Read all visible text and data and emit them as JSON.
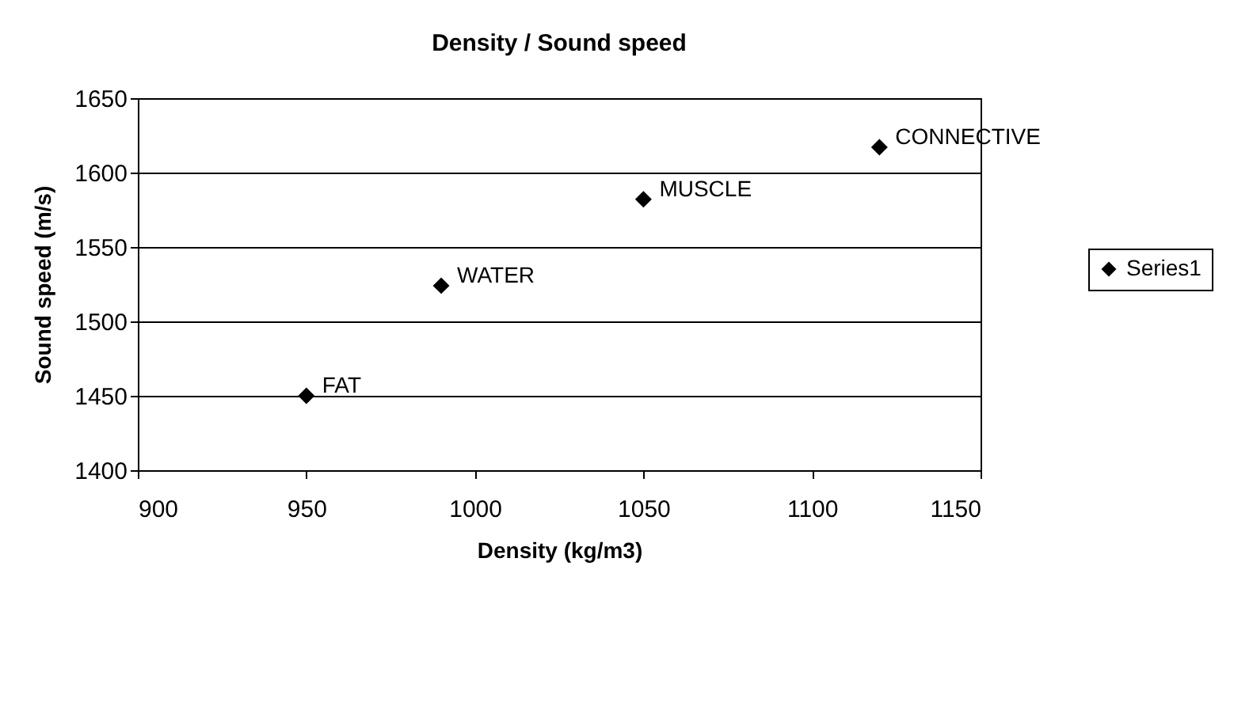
{
  "chart_data": {
    "type": "scatter",
    "title": "Density / Sound speed",
    "xlabel": "Density (kg/m3)",
    "ylabel": "Sound speed (m/s)",
    "x": [
      950,
      990,
      1050,
      1120
    ],
    "series": [
      {
        "name": "Series1",
        "color": "#000000",
        "values": [
          1450,
          1524,
          1582,
          1617
        ]
      }
    ],
    "annotations": [
      {
        "text": "FAT",
        "x": 950,
        "y": 1450
      },
      {
        "text": "WATER",
        "x": 990,
        "y": 1524
      },
      {
        "text": "MUSCLE",
        "x": 1050,
        "y": 1582
      },
      {
        "text": "CONNECTIVE",
        "x": 1120,
        "y": 1617
      }
    ],
    "xlim": [
      900,
      1150
    ],
    "xticks": [
      900,
      950,
      1000,
      1050,
      1100,
      1150
    ],
    "ylim": [
      1400,
      1650
    ],
    "yticks": [
      1400,
      1450,
      1500,
      1550,
      1600,
      1650
    ],
    "grid": "y",
    "legend": "right",
    "marker": "diamond"
  }
}
